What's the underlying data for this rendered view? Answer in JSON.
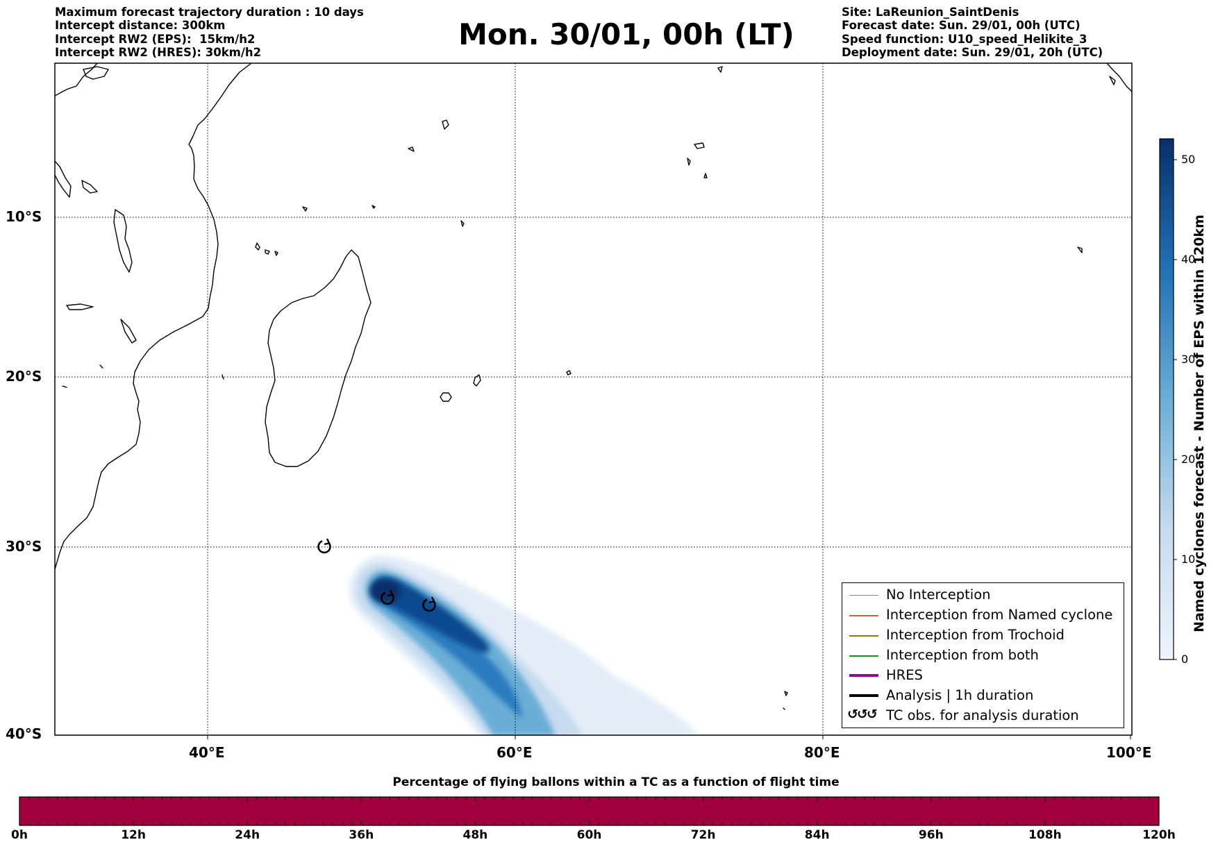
{
  "header": {
    "left_lines": [
      "Maximum forecast trajectory duration : 10 days",
      "Intercept distance: 300km",
      "Intercept RW2 (EPS):  15km/h2",
      "Intercept RW2 (HRES): 30km/h2"
    ],
    "title": "Mon. 30/01, 00h (LT)",
    "right_lines": [
      "Site: LaReunion_SaintDenis",
      "Forecast date: Sun. 29/01, 00h (UTC)",
      "Speed function: U10_speed_Helikite_3",
      "Deployment date: Sun. 29/01, 20h (UTC)"
    ]
  },
  "map": {
    "lon_labels": [
      "40°E",
      "60°E",
      "80°E",
      "100°E"
    ],
    "lat_labels": [
      "10°S",
      "20°S",
      "30°S",
      "40°S"
    ],
    "tc_markers": [
      {
        "lon": 47.5,
        "lat": -30.0
      },
      {
        "lon": 51.7,
        "lat": -33.0
      },
      {
        "lon": 54.4,
        "lat": -33.4
      }
    ],
    "density_fill_color": "#1f6fb4"
  },
  "legend": {
    "items": [
      {
        "label": "No Interception",
        "color": "#888888",
        "width": 1
      },
      {
        "label": "Interception from Named cyclone",
        "color": "#e8571e",
        "width": 1.3
      },
      {
        "label": "Interception from Trochoid",
        "color": "#8a7a14",
        "width": 1.3
      },
      {
        "label": "Interception from both",
        "color": "#1d8a1d",
        "width": 1.3
      },
      {
        "label": "HRES",
        "color": "#8e0d8e",
        "width": 4
      },
      {
        "label": "Analysis | 1h duration",
        "color": "#000000",
        "width": 4
      },
      {
        "label": "TC obs. for analysis duration",
        "glyph": "↺↺↺"
      }
    ]
  },
  "colorbar": {
    "label": "Named cyclones forecast - Number of EPS within 120km",
    "ticks": [
      "0",
      "10",
      "20",
      "30",
      "40",
      "50"
    ],
    "min_color": "#eaf2fb",
    "max_color": "#08306b"
  },
  "bottom_bar": {
    "title": "Percentage of flying ballons within a TC as a function of flight time",
    "fill_color": "#a1003c",
    "labels": [
      "0h",
      "12h",
      "24h",
      "36h",
      "48h",
      "60h",
      "72h",
      "84h",
      "96h",
      "108h",
      "120h"
    ]
  }
}
